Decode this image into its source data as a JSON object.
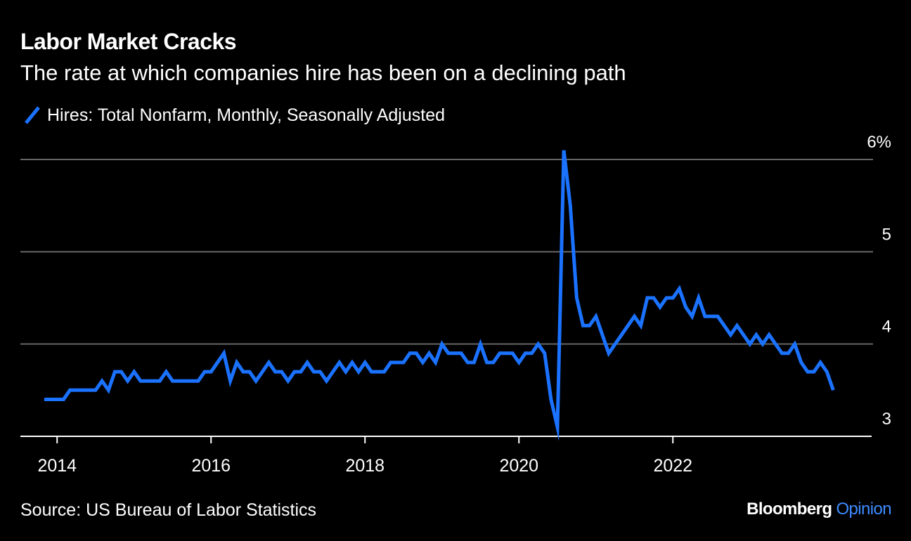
{
  "title": "Labor Market Cracks",
  "subtitle": "The rate at which companies hire has been on a declining path",
  "source": "Source: US Bureau of Labor Statistics",
  "brand": {
    "name": "Bloomberg",
    "suffix": "Opinion",
    "suffix_color": "#3f8cff"
  },
  "colors": {
    "background": "#000000",
    "text": "#ffffff",
    "gridline": "#666666",
    "series": "#1a72ff"
  },
  "chart_data": {
    "type": "line",
    "title": "Labor Market Cracks",
    "subtitle": "The rate at which companies hire has been on a declining path",
    "xlabel": "",
    "ylabel": "",
    "x_start": "2013-11",
    "x_frequency": "monthly",
    "xlim": [
      "2013-10",
      "2024-06"
    ],
    "ylim": [
      3,
      6
    ],
    "y_ticks": [
      {
        "value": 3,
        "label": "3"
      },
      {
        "value": 4,
        "label": "4"
      },
      {
        "value": 5,
        "label": "5"
      },
      {
        "value": 6,
        "label": "6%"
      }
    ],
    "x_ticks": [
      {
        "value": "2014-01",
        "label": "2014"
      },
      {
        "value": "2016-01",
        "label": "2016"
      },
      {
        "value": "2018-01",
        "label": "2018"
      },
      {
        "value": "2020-01",
        "label": "2020"
      },
      {
        "value": "2022-01",
        "label": "2022"
      }
    ],
    "grid": true,
    "legend_position": "top-left",
    "series": [
      {
        "name": "Hires: Total Nonfarm, Monthly, Seasonally Adjusted",
        "color": "#1a72ff",
        "values": [
          3.4,
          3.4,
          3.4,
          3.4,
          3.5,
          3.5,
          3.5,
          3.5,
          3.5,
          3.6,
          3.5,
          3.7,
          3.7,
          3.6,
          3.7,
          3.6,
          3.6,
          3.6,
          3.6,
          3.7,
          3.6,
          3.6,
          3.6,
          3.6,
          3.6,
          3.7,
          3.7,
          3.8,
          3.9,
          3.6,
          3.8,
          3.7,
          3.7,
          3.6,
          3.7,
          3.8,
          3.7,
          3.7,
          3.6,
          3.7,
          3.7,
          3.8,
          3.7,
          3.7,
          3.6,
          3.7,
          3.8,
          3.7,
          3.8,
          3.7,
          3.8,
          3.7,
          3.7,
          3.7,
          3.8,
          3.8,
          3.8,
          3.9,
          3.9,
          3.8,
          3.9,
          3.8,
          4.0,
          3.9,
          3.9,
          3.9,
          3.8,
          3.8,
          4.0,
          3.8,
          3.8,
          3.9,
          3.9,
          3.9,
          3.8,
          3.9,
          3.9,
          4.0,
          3.9,
          3.4,
          3.1,
          6.1,
          5.5,
          4.5,
          4.2,
          4.2,
          4.3,
          4.1,
          3.9,
          4.0,
          4.1,
          4.2,
          4.3,
          4.2,
          4.5,
          4.5,
          4.4,
          4.5,
          4.5,
          4.6,
          4.4,
          4.3,
          4.5,
          4.3,
          4.3,
          4.3,
          4.2,
          4.1,
          4.2,
          4.1,
          4.0,
          4.1,
          4.0,
          4.1,
          4.0,
          3.9,
          3.9,
          4.0,
          3.8,
          3.7,
          3.7,
          3.8,
          3.7,
          3.5
        ]
      }
    ]
  }
}
